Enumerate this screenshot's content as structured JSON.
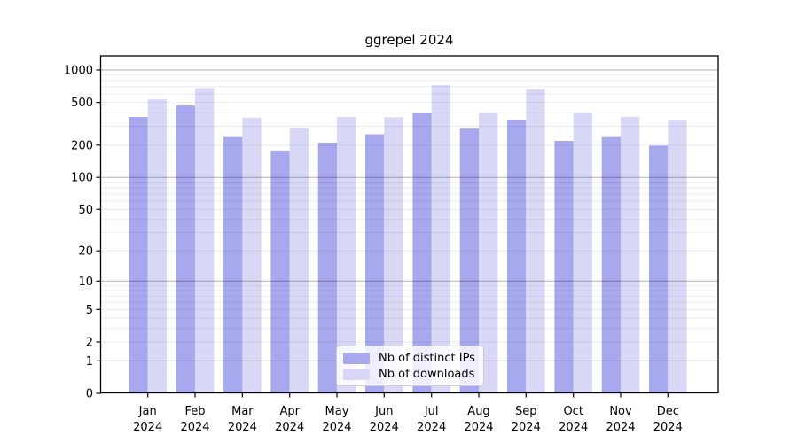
{
  "title": "ggrepel 2024",
  "legend": {
    "items": [
      {
        "label": "Nb of distinct IPs",
        "color": "#a8a8ef"
      },
      {
        "label": "Nb of downloads",
        "color": "#d9d9f7"
      }
    ]
  },
  "chart_data": {
    "type": "bar",
    "title": "ggrepel 2024",
    "categories": [
      "Jan 2024",
      "Feb 2024",
      "Mar 2024",
      "Apr 2024",
      "May 2024",
      "Jun 2024",
      "Jul 2024",
      "Aug 2024",
      "Sep 2024",
      "Oct 2024",
      "Nov 2024",
      "Dec 2024"
    ],
    "series": [
      {
        "name": "Nb of distinct IPs",
        "color": "#a8a8ef",
        "values": [
          366,
          468,
          238,
          178,
          211,
          253,
          396,
          285,
          340,
          219,
          238,
          198
        ]
      },
      {
        "name": "Nb of downloads",
        "color": "#d9d9f7",
        "values": [
          533,
          680,
          361,
          289,
          366,
          364,
          723,
          400,
          660,
          400,
          368,
          338
        ]
      }
    ],
    "xlabel": "",
    "ylabel": "",
    "yscale": "log1p",
    "ylim": [
      0,
      1350
    ],
    "yticks": [
      0,
      1,
      2,
      5,
      10,
      20,
      50,
      100,
      200,
      500,
      1000
    ],
    "grid": "major and minor horizontal",
    "legend_position": "lower center"
  }
}
